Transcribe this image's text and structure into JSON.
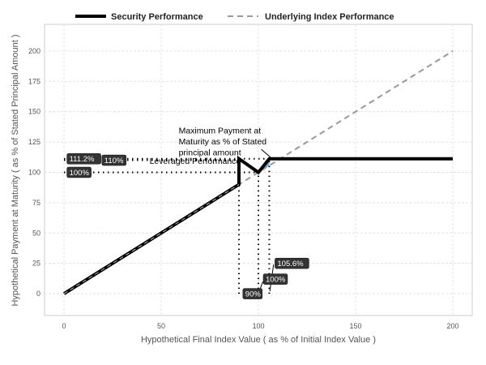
{
  "chart_data": {
    "type": "line",
    "xlabel": "Hypothetical Final Index Value ( as % of Initial Index Value )",
    "ylabel": "Hypothetical Payment at Maturity ( as % of Stated Principal Amount )",
    "xlim": [
      -10,
      210
    ],
    "ylim": [
      -18,
      222
    ],
    "xticks": [
      0,
      50,
      100,
      150,
      200
    ],
    "yticks": [
      0,
      25,
      50,
      75,
      100,
      125,
      150,
      175,
      200
    ],
    "grid": true,
    "legend_position": "top",
    "series": [
      {
        "name": "Security Performance",
        "color": "#000000",
        "style": "solid",
        "points": [
          [
            0,
            0
          ],
          [
            90,
            90
          ],
          [
            90,
            111.2
          ],
          [
            100,
            100
          ],
          [
            105.6,
            111.2
          ],
          [
            200,
            111.2
          ]
        ]
      },
      {
        "name": "Underlying Index Performance",
        "color": "#999999",
        "style": "dashed",
        "points": [
          [
            0,
            0
          ],
          [
            200,
            200
          ]
        ]
      }
    ],
    "shaded_region": {
      "color": "#5b9bd5",
      "points": [
        [
          100,
          100
        ],
        [
          105.6,
          105.6
        ],
        [
          105.6,
          111.2
        ]
      ]
    },
    "reference_lines": {
      "horizontal": [
        111.2,
        110,
        100
      ],
      "vertical": [
        90,
        100,
        105.6
      ]
    },
    "annotations": [
      {
        "text": "Maximum Payment at",
        "x": 59,
        "y": 132
      },
      {
        "text": "Maturity as % of Stated",
        "x": 59,
        "y": 123
      },
      {
        "text": "principal amount",
        "x": 59,
        "y": 114
      },
      {
        "text": "Leveraged Performance",
        "x": 44,
        "y": 107
      }
    ],
    "labels": [
      {
        "text": "111.2%",
        "x": 1.5,
        "y": 111.2
      },
      {
        "text": "110%",
        "x": 19.5,
        "y": 110
      },
      {
        "text": "100%",
        "x": 1.5,
        "y": 100
      },
      {
        "text": "105.6%",
        "x": 108.5,
        "y": 25
      },
      {
        "text": "100%",
        "x": 102.5,
        "y": 12
      },
      {
        "text": "90%",
        "x": 92,
        "y": 0
      }
    ]
  }
}
